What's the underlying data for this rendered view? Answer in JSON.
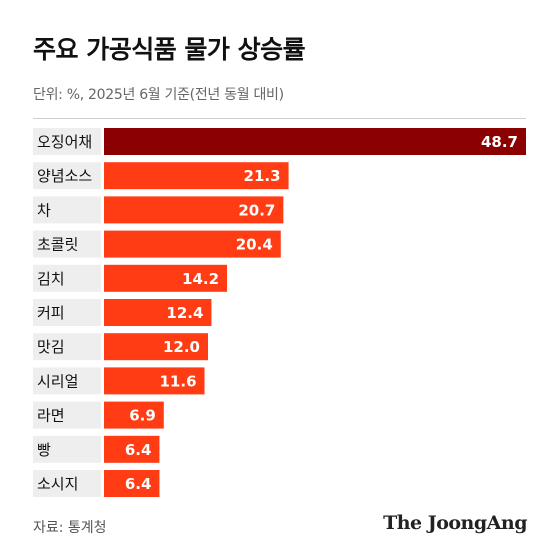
{
  "header": {
    "title": "주요 가공식품 물가 상승률",
    "subtitle": "단위: %, 2025년 6월 기준(전년 동월 대비)"
  },
  "footer": {
    "source": "자료: 통계청",
    "brand": "The JoongAng"
  },
  "colors": {
    "highlight_bar": "#8b0000",
    "bar": "#ff3c13",
    "category_band": "#eeeeee"
  },
  "chart_data": {
    "type": "bar",
    "orientation": "horizontal",
    "categories": [
      "오징어채",
      "양념소스",
      "차",
      "초콜릿",
      "김치",
      "커피",
      "맛김",
      "시리얼",
      "라면",
      "빵",
      "소시지"
    ],
    "values": [
      48.7,
      21.3,
      20.7,
      20.4,
      14.2,
      12.4,
      12.0,
      11.6,
      6.9,
      6.4,
      6.4
    ],
    "value_labels": [
      "48.7",
      "21.3",
      "20.7",
      "20.4",
      "14.2",
      "12.4",
      "12.0",
      "11.6",
      "6.9",
      "6.4",
      "6.4"
    ],
    "title": "주요 가공식품 물가 상승률",
    "subtitle": "단위: %, 2025년 6월 기준(전년 동월 대비)",
    "xlim": [
      0,
      48.7
    ],
    "grid": false,
    "legend": "none",
    "highlight_index": 0
  }
}
